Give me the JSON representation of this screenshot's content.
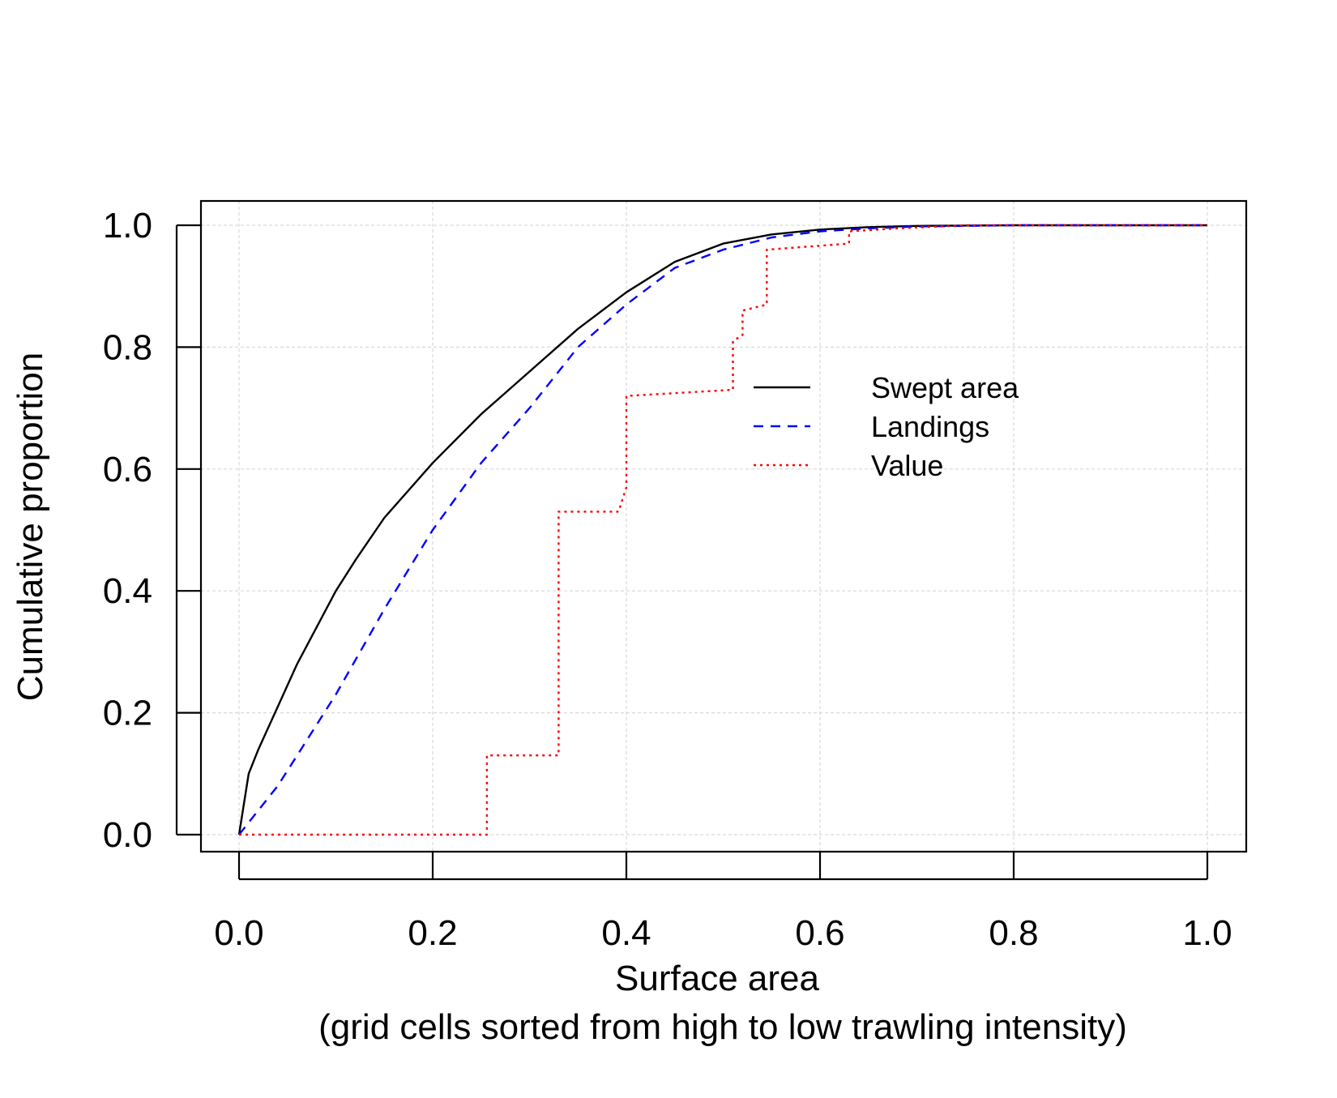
{
  "chart_data": {
    "type": "line",
    "xlabel": "Surface area",
    "xlabel_line2": "(grid cells sorted from high to low trawling intensity)",
    "ylabel": "Cumulative proportion",
    "xlim": [
      0.0,
      1.0
    ],
    "ylim": [
      0.0,
      1.0
    ],
    "x_ticks": [
      "0.0",
      "0.2",
      "0.4",
      "0.6",
      "0.8",
      "1.0"
    ],
    "y_ticks": [
      "0.0",
      "0.2",
      "0.4",
      "0.6",
      "0.8",
      "1.0"
    ],
    "grid": true,
    "legend_position": "center-right",
    "series": [
      {
        "name": "Swept area",
        "color": "#000000",
        "style": "solid",
        "x": [
          0.0,
          0.01,
          0.02,
          0.04,
          0.06,
          0.08,
          0.1,
          0.12,
          0.15,
          0.2,
          0.25,
          0.3,
          0.35,
          0.4,
          0.45,
          0.5,
          0.55,
          0.6,
          0.65,
          0.7,
          0.8,
          0.9,
          1.0
        ],
        "y": [
          0.0,
          0.1,
          0.14,
          0.21,
          0.28,
          0.34,
          0.4,
          0.45,
          0.52,
          0.61,
          0.69,
          0.76,
          0.83,
          0.89,
          0.94,
          0.97,
          0.985,
          0.993,
          0.997,
          0.999,
          1.0,
          1.0,
          1.0
        ]
      },
      {
        "name": "Landings",
        "color": "#0000ff",
        "style": "dashed",
        "x": [
          0.0,
          0.02,
          0.04,
          0.06,
          0.08,
          0.1,
          0.15,
          0.2,
          0.25,
          0.3,
          0.35,
          0.4,
          0.45,
          0.5,
          0.55,
          0.6,
          0.65,
          0.7,
          0.8,
          0.9,
          1.0
        ],
        "y": [
          0.0,
          0.04,
          0.08,
          0.13,
          0.18,
          0.23,
          0.37,
          0.5,
          0.61,
          0.7,
          0.8,
          0.87,
          0.93,
          0.96,
          0.98,
          0.99,
          0.995,
          0.998,
          1.0,
          1.0,
          1.0
        ]
      },
      {
        "name": "Value",
        "color": "#ff0000",
        "style": "dotted",
        "x": [
          0.0,
          0.256,
          0.256,
          0.33,
          0.33,
          0.392,
          0.4,
          0.4,
          0.51,
          0.51,
          0.52,
          0.52,
          0.545,
          0.545,
          0.63,
          0.63,
          0.68,
          0.75,
          1.0
        ],
        "y": [
          0.0,
          0.0,
          0.13,
          0.13,
          0.53,
          0.53,
          0.57,
          0.72,
          0.73,
          0.81,
          0.82,
          0.86,
          0.87,
          0.96,
          0.97,
          0.99,
          0.995,
          1.0,
          1.0
        ]
      }
    ]
  }
}
